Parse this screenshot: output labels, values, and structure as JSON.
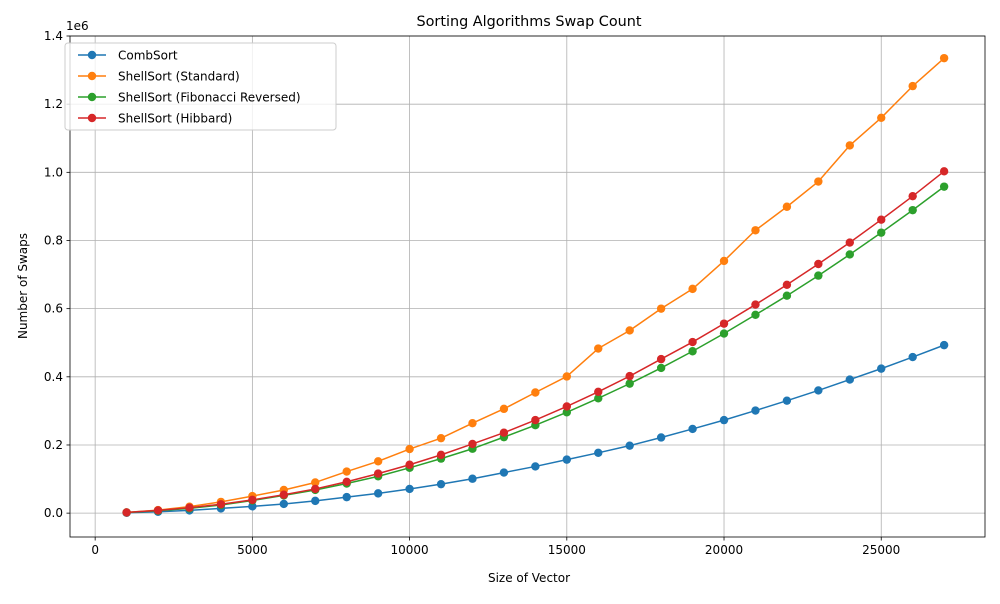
{
  "chart_data": {
    "type": "line",
    "title": "Sorting Algorithms Swap Count",
    "xlabel": "Size of Vector",
    "ylabel": "Number of Swaps",
    "y_offset_text": "1e6",
    "xlim": [
      -800,
      28300
    ],
    "ylim": [
      -0.07,
      1.4
    ],
    "x_ticks": [
      0,
      5000,
      10000,
      15000,
      20000,
      25000
    ],
    "x_tick_labels": [
      "0",
      "5000",
      "10000",
      "15000",
      "20000",
      "25000"
    ],
    "y_ticks": [
      0.0,
      0.2,
      0.4,
      0.6,
      0.8,
      1.0,
      1.2,
      1.4
    ],
    "y_tick_labels": [
      "0.0",
      "0.2",
      "0.4",
      "0.6",
      "0.8",
      "1.0",
      "1.2",
      "1.4"
    ],
    "grid": true,
    "legend_position": "top-left",
    "x": [
      1000,
      2000,
      3000,
      4000,
      5000,
      6000,
      7000,
      8000,
      9000,
      10000,
      11000,
      12000,
      13000,
      14000,
      15000,
      16000,
      17000,
      18000,
      19000,
      20000,
      21000,
      22000,
      23000,
      24000,
      25000,
      26000,
      27000
    ],
    "series": [
      {
        "name": "CombSort",
        "color": "#1f77b4",
        "values": [
          0.001,
          0.004,
          0.008,
          0.014,
          0.02,
          0.027,
          0.036,
          0.047,
          0.058,
          0.071,
          0.085,
          0.101,
          0.119,
          0.137,
          0.157,
          0.177,
          0.198,
          0.222,
          0.247,
          0.273,
          0.301,
          0.33,
          0.36,
          0.392,
          0.424,
          0.458,
          0.493
        ]
      },
      {
        "name": "ShellSort (Standard)",
        "color": "#ff7f0e",
        "values": [
          0.002,
          0.009,
          0.019,
          0.033,
          0.05,
          0.068,
          0.09,
          0.122,
          0.152,
          0.188,
          0.22,
          0.264,
          0.306,
          0.354,
          0.401,
          0.483,
          0.536,
          0.6,
          0.658,
          0.74,
          0.83,
          0.899,
          0.973,
          1.079,
          1.16,
          1.253,
          1.335
        ]
      },
      {
        "name": "ShellSort (Fibonacci Reversed)",
        "color": "#2ca02c",
        "values": [
          0.002,
          0.007,
          0.014,
          0.024,
          0.037,
          0.052,
          0.068,
          0.087,
          0.108,
          0.133,
          0.16,
          0.189,
          0.223,
          0.258,
          0.296,
          0.337,
          0.38,
          0.426,
          0.475,
          0.527,
          0.582,
          0.638,
          0.697,
          0.759,
          0.823,
          0.889,
          0.958
        ]
      },
      {
        "name": "ShellSort (Hibbard)",
        "color": "#d62728",
        "values": [
          0.002,
          0.008,
          0.016,
          0.026,
          0.039,
          0.054,
          0.071,
          0.092,
          0.116,
          0.142,
          0.171,
          0.203,
          0.236,
          0.273,
          0.313,
          0.356,
          0.402,
          0.452,
          0.502,
          0.556,
          0.612,
          0.67,
          0.731,
          0.794,
          0.861,
          0.93,
          1.003
        ]
      }
    ]
  }
}
